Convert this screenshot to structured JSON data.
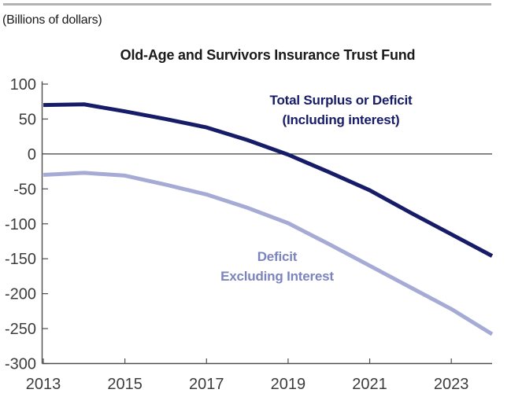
{
  "chart_data": {
    "type": "line",
    "title": "Old-Age and Survivors Insurance Trust Fund",
    "units_label": "(Billions of dollars)",
    "xlabel": "",
    "ylabel": "Billions of dollars",
    "xlim": [
      2013,
      2024
    ],
    "ylim": [
      -300,
      100
    ],
    "x_ticks": [
      2013,
      2015,
      2017,
      2019,
      2021,
      2023
    ],
    "y_ticks": [
      100,
      50,
      0,
      -50,
      -100,
      -150,
      -200,
      -250,
      -300
    ],
    "grid": false,
    "zero_line": true,
    "legend_position": "inline-annotations",
    "x": [
      2013,
      2014,
      2015,
      2016,
      2017,
      2018,
      2019,
      2020,
      2021,
      2022,
      2023,
      2024
    ],
    "series": [
      {
        "name": "Total Surplus or Deficit (Including interest)",
        "color": "#171c69",
        "values": [
          70,
          71,
          61,
          50,
          38,
          20,
          -1,
          -26,
          -52,
          -84,
          -115,
          -146
        ]
      },
      {
        "name": "Deficit Excluding Interest",
        "color": "#a5abd5",
        "values": [
          -30,
          -27,
          -31,
          -44,
          -58,
          -77,
          -99,
          -129,
          -160,
          -191,
          -222,
          -258
        ]
      }
    ],
    "annotations": [
      {
        "lines": [
          "Total Surplus or Deficit",
          "(Including interest)"
        ],
        "color": "#171c69"
      },
      {
        "lines": [
          "Deficit",
          "Excluding Interest"
        ],
        "color": "#7b84bf"
      }
    ],
    "colors": {
      "axis": "#4d4d4d",
      "tick_label": "#3d3d3d",
      "zero_line": "#3f3f3f",
      "title": "#1a1a1a",
      "top_rule": "#b3b3b3",
      "background": "#ffffff"
    }
  }
}
